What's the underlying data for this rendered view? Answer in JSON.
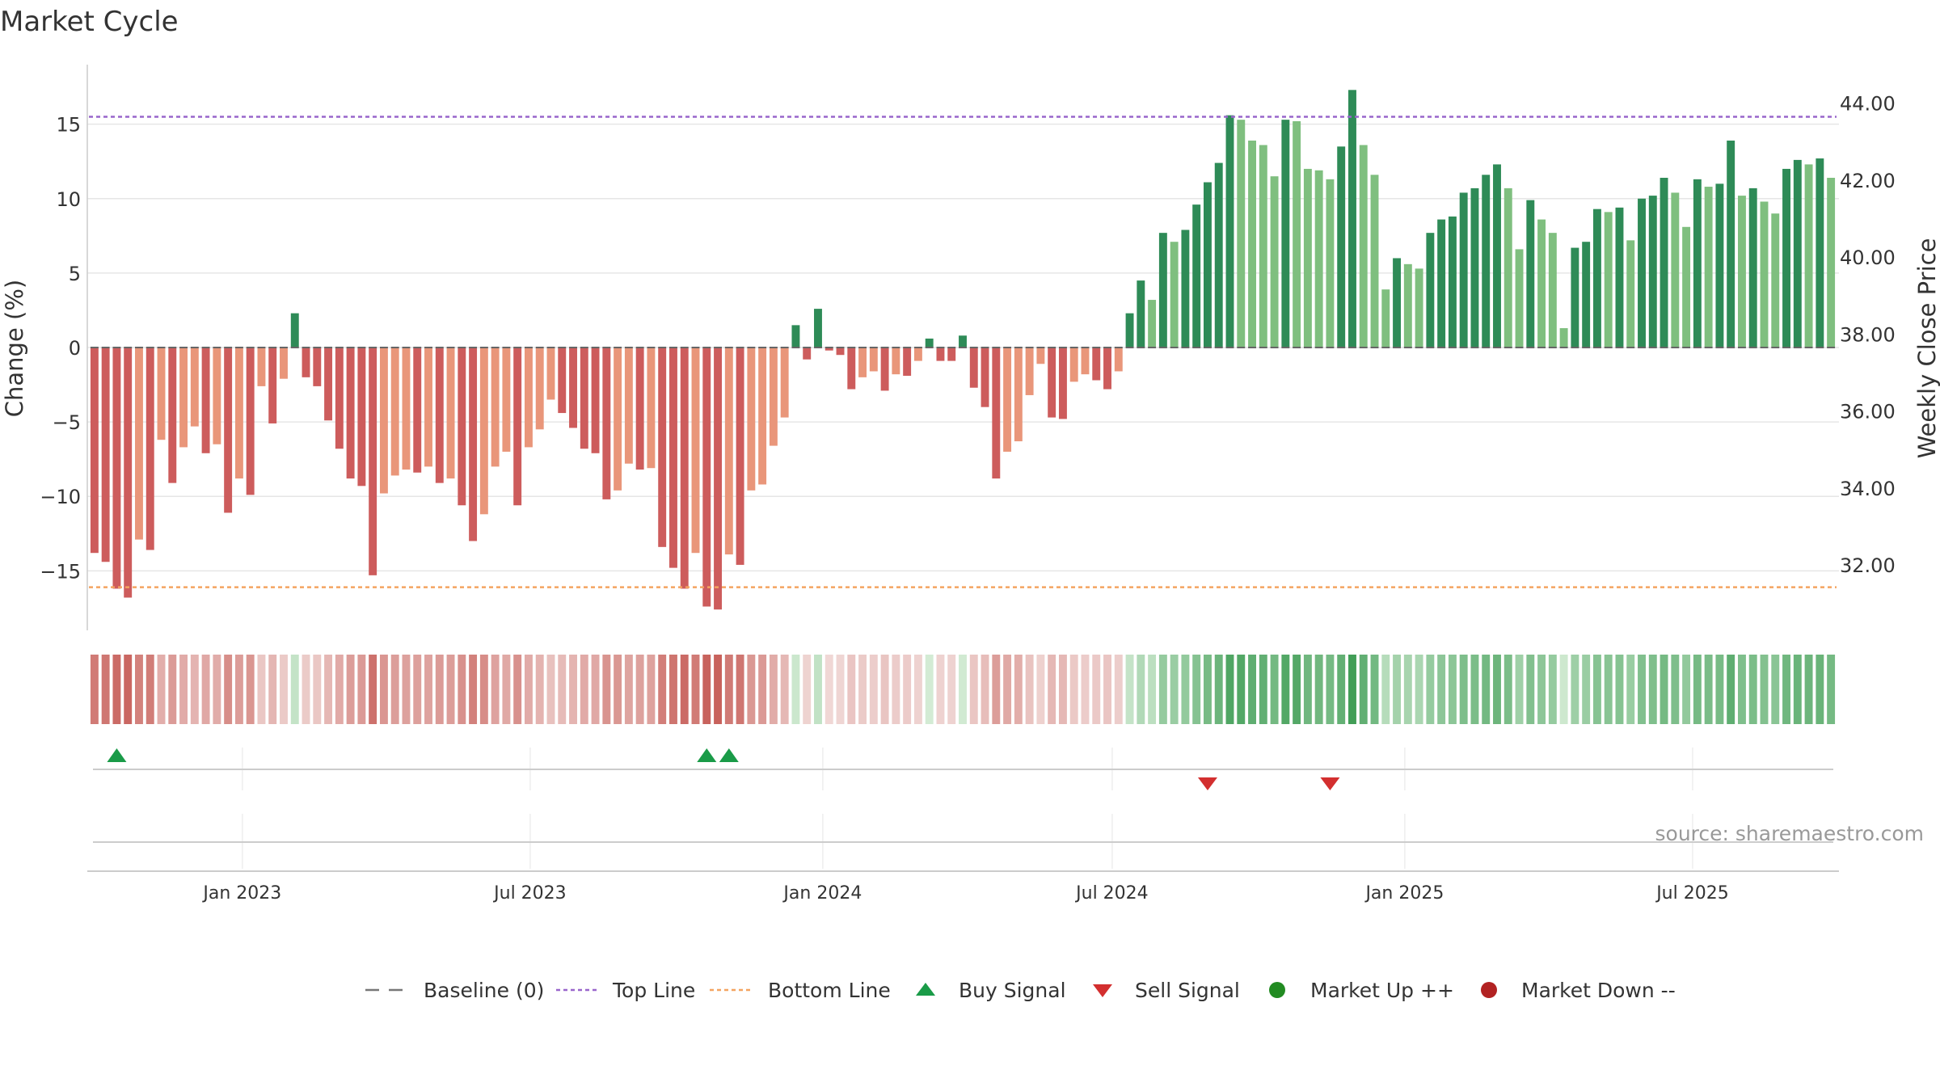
{
  "chart_data": {
    "type": "bar",
    "title": "Market Cycle",
    "ylabel": "Change (%)",
    "y2label": "Weekly Close Price",
    "ylim": [
      -19,
      19
    ],
    "y_ticks": [
      -15,
      -10,
      -5,
      0,
      5,
      10,
      15
    ],
    "y2_ticks": [
      "32.00",
      "34.00",
      "36.00",
      "38.00",
      "40.00",
      "42.00",
      "44.00"
    ],
    "y2_tick_values": [
      32,
      34,
      36,
      38,
      40,
      42,
      44
    ],
    "y2lim": [
      30.3,
      45.0
    ],
    "top_line": 15.5,
    "bottom_line": -16.1,
    "x_start": "2022-09-30",
    "x_step_days": 7,
    "x_ticks": [
      {
        "label": "Jan 2023",
        "date": "2023-01-01"
      },
      {
        "label": "Jul 2023",
        "date": "2023-07-01"
      },
      {
        "label": "Jan 2024",
        "date": "2024-01-01"
      },
      {
        "label": "Jul 2024",
        "date": "2024-07-01"
      },
      {
        "label": "Jan 2025",
        "date": "2025-01-01"
      },
      {
        "label": "Jul 2025",
        "date": "2025-07-01"
      }
    ],
    "values": [
      -13.8,
      -14.4,
      -16.2,
      -16.8,
      -12.9,
      -13.6,
      -6.2,
      -9.1,
      -6.7,
      -5.3,
      -7.1,
      -6.5,
      -11.1,
      -8.8,
      -9.9,
      -2.6,
      -5.1,
      -2.1,
      2.3,
      -2.0,
      -2.6,
      -4.9,
      -6.8,
      -8.8,
      -9.3,
      -15.3,
      -9.8,
      -8.6,
      -8.2,
      -8.4,
      -8.0,
      -9.1,
      -8.8,
      -10.6,
      -13.0,
      -11.2,
      -8.0,
      -7.0,
      -10.6,
      -6.7,
      -5.5,
      -3.5,
      -4.4,
      -5.4,
      -6.8,
      -7.1,
      -10.2,
      -9.6,
      -7.8,
      -8.2,
      -8.1,
      -13.4,
      -14.8,
      -16.2,
      -13.8,
      -17.4,
      -17.6,
      -13.9,
      -14.6,
      -9.6,
      -9.2,
      -6.6,
      -4.7,
      1.5,
      -0.8,
      2.6,
      -0.2,
      -0.5,
      -2.8,
      -2.0,
      -1.6,
      -2.9,
      -1.8,
      -1.9,
      -0.9,
      0.6,
      -0.9,
      -0.9,
      0.8,
      -2.7,
      -4.0,
      -8.8,
      -7.0,
      -6.3,
      -3.2,
      -1.1,
      -4.7,
      -4.8,
      -2.3,
      -1.8,
      -2.2,
      -2.8,
      -1.6,
      2.3,
      4.5,
      3.2,
      7.7,
      7.1,
      7.9,
      9.6,
      11.1,
      12.4,
      15.6,
      15.3,
      13.9,
      13.6,
      11.5,
      15.3,
      15.2,
      12.0,
      11.9,
      11.3,
      13.5,
      17.3,
      13.6,
      11.6,
      3.9,
      6.0,
      5.6,
      5.3,
      7.7,
      8.6,
      8.8,
      10.4,
      10.7,
      11.6,
      12.3,
      10.7,
      6.6,
      9.9,
      8.6,
      7.7,
      1.3,
      6.7,
      7.1,
      9.3,
      9.1,
      9.4,
      7.2,
      10.0,
      10.2,
      11.4,
      10.4,
      8.1,
      11.3,
      10.8,
      11.0,
      13.9,
      10.2,
      10.7,
      9.8,
      9.0,
      12.0,
      12.6,
      12.3,
      12.7,
      11.4
    ],
    "buy_signals": [
      "2022-10-14",
      "2023-10-20",
      "2023-11-03"
    ],
    "sell_signals": [
      "2024-08-30",
      "2024-11-15"
    ],
    "legend": [
      "Baseline (0)",
      "Top Line",
      "Bottom Line",
      "Buy Signal",
      "Sell Signal",
      "Market Up ++",
      "Market Down --"
    ],
    "legend_placement": "bottom",
    "grid": true
  },
  "colors": {
    "up_strong": "#2e8b57",
    "up_light": "#7fbf7f",
    "down_strong": "#cd5c5c",
    "down_light": "#e9967a",
    "top_line": "#9966cc",
    "bottom_line": "#f4a460",
    "buy": "#1a9b48",
    "sell": "#d32f2f",
    "market_up": "#228b22",
    "market_down": "#b22222",
    "grid": "#e6e6e6",
    "axis_text": "#333333"
  },
  "source": "source: sharemaestro.com"
}
